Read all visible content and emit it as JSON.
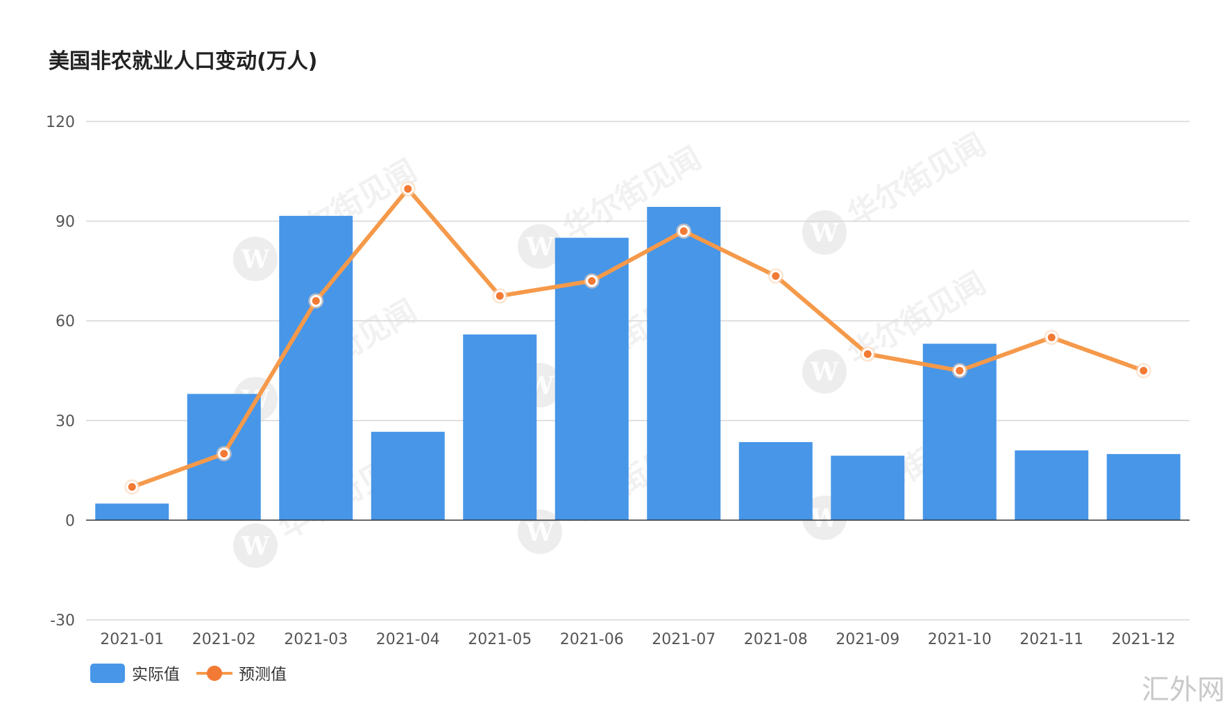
{
  "chart_data": {
    "type": "bar",
    "title": "美国非农就业人口变动(万人)",
    "categories": [
      "2021-01",
      "2021-02",
      "2021-03",
      "2021-04",
      "2021-05",
      "2021-06",
      "2021-07",
      "2021-08",
      "2021-09",
      "2021-10",
      "2021-11",
      "2021-12"
    ],
    "series": [
      {
        "name": "实际值",
        "type": "bar",
        "color": "#4796e8",
        "values": [
          5,
          38,
          91.6,
          26.6,
          55.9,
          85,
          94.3,
          23.5,
          19.4,
          53.1,
          21,
          19.9
        ]
      },
      {
        "name": "预测值",
        "type": "line",
        "color": "#f5994a",
        "marker_color": "#f27a35",
        "values": [
          10,
          20,
          66,
          99.7,
          67.5,
          72,
          87,
          73.5,
          50,
          45,
          55,
          45
        ]
      }
    ],
    "ylim": [
      -30,
      120
    ],
    "yticks": [
      "120",
      "90",
      "60",
      "30",
      "0",
      "-30"
    ],
    "ytick_values": [
      120,
      90,
      60,
      30,
      0,
      -30
    ],
    "grid": true,
    "legend_position": "bottom-left"
  },
  "watermark": {
    "text": "华尔街见闻",
    "logo_letter": "W"
  },
  "brand": "汇外网"
}
